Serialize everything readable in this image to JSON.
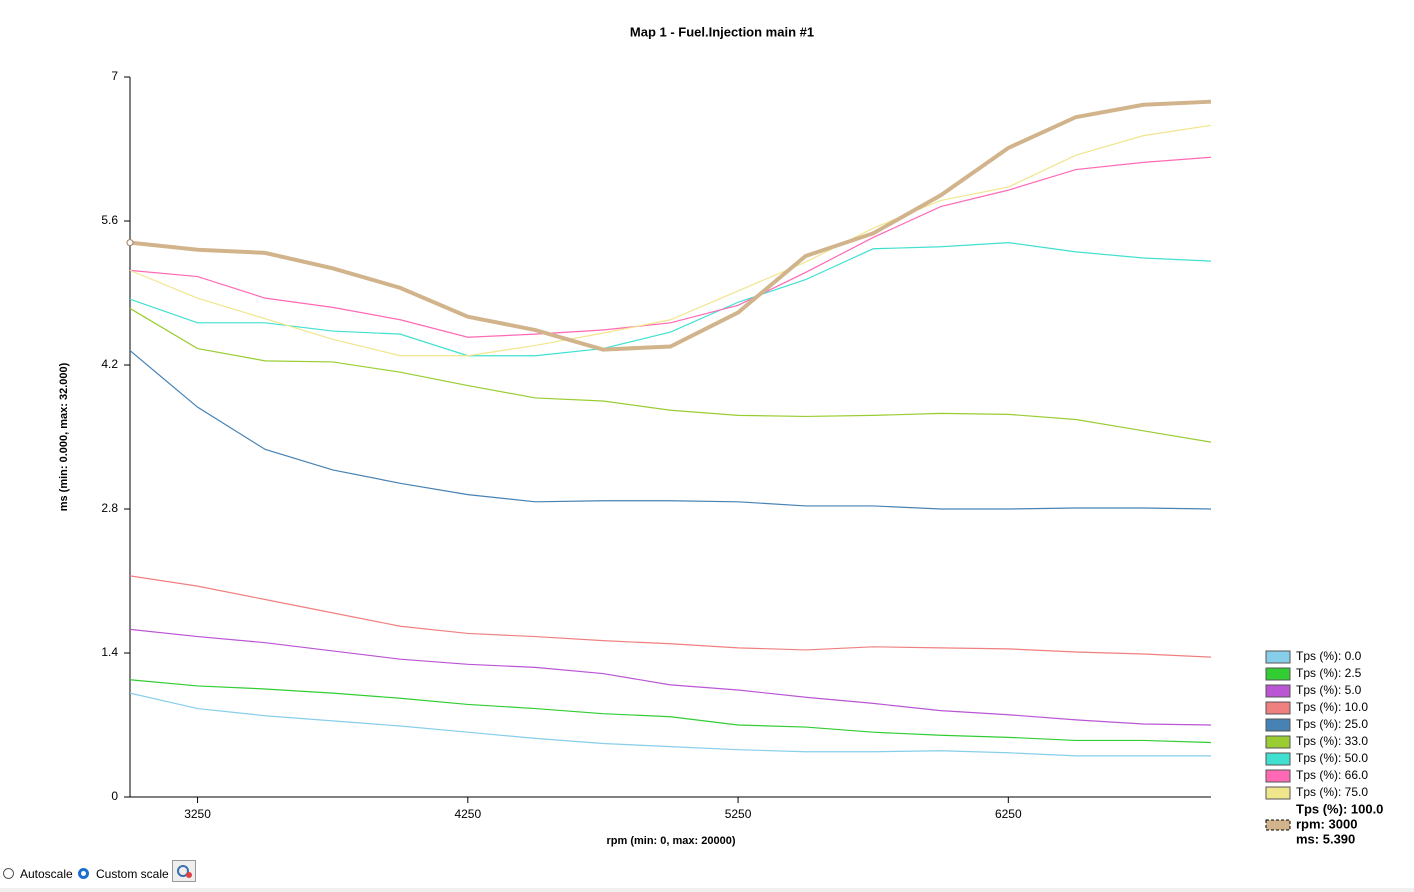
{
  "chart_data": {
    "type": "line",
    "title": "Map 1 - Fuel.Injection main #1",
    "x_label": "rpm (min: 0, max: 20000)",
    "y_label": "ms (min: 0.000, max: 32.000)",
    "x": [
      3000,
      3250,
      3500,
      3750,
      4000,
      4250,
      4500,
      4750,
      5000,
      5250,
      5500,
      5750,
      6000,
      6250,
      6500,
      6750,
      7000
    ],
    "xlim": [
      3000,
      7000
    ],
    "xticks": [
      3250,
      4250,
      5250,
      6250
    ],
    "ylim": [
      0,
      7
    ],
    "yticks": [
      0,
      1.4,
      2.8,
      4.2,
      5.6,
      7
    ],
    "legend": "right",
    "series": [
      {
        "name": "Tps (%): 0.0",
        "color": "#87ceeb",
        "values": [
          1.01,
          0.86,
          0.79,
          0.74,
          0.69,
          0.63,
          0.57,
          0.52,
          0.49,
          0.46,
          0.44,
          0.44,
          0.45,
          0.43,
          0.4,
          0.4,
          0.4
        ]
      },
      {
        "name": "Tps (%): 2.5",
        "color": "#32cd32",
        "values": [
          1.14,
          1.08,
          1.05,
          1.01,
          0.96,
          0.9,
          0.86,
          0.81,
          0.78,
          0.7,
          0.68,
          0.63,
          0.6,
          0.58,
          0.55,
          0.55,
          0.53
        ]
      },
      {
        "name": "Tps (%): 5.0",
        "color": "#ba55d3",
        "values": [
          1.63,
          1.56,
          1.5,
          1.42,
          1.34,
          1.29,
          1.26,
          1.2,
          1.09,
          1.04,
          0.97,
          0.91,
          0.84,
          0.8,
          0.75,
          0.71,
          0.7
        ]
      },
      {
        "name": "Tps (%): 10.0",
        "color": "#f08080",
        "values": [
          2.15,
          2.05,
          1.92,
          1.79,
          1.66,
          1.59,
          1.56,
          1.52,
          1.49,
          1.45,
          1.43,
          1.46,
          1.45,
          1.44,
          1.41,
          1.39,
          1.36
        ]
      },
      {
        "name": "Tps (%): 25.0",
        "color": "#4682b4",
        "values": [
          4.34,
          3.79,
          3.38,
          3.18,
          3.05,
          2.94,
          2.87,
          2.88,
          2.88,
          2.87,
          2.83,
          2.83,
          2.8,
          2.8,
          2.81,
          2.81,
          2.8
        ]
      },
      {
        "name": "Tps (%): 33.0",
        "color": "#9acd32",
        "values": [
          4.75,
          4.36,
          4.24,
          4.23,
          4.13,
          4.0,
          3.88,
          3.85,
          3.76,
          3.71,
          3.7,
          3.71,
          3.73,
          3.72,
          3.67,
          3.56,
          3.45
        ]
      },
      {
        "name": "Tps (%): 50.0",
        "color": "#40e0d0",
        "values": [
          4.84,
          4.61,
          4.61,
          4.53,
          4.5,
          4.29,
          4.29,
          4.36,
          4.52,
          4.81,
          5.03,
          5.33,
          5.35,
          5.39,
          5.3,
          5.24,
          5.21
        ]
      },
      {
        "name": "Tps (%): 66.0",
        "color": "#ff69b4",
        "values": [
          5.12,
          5.06,
          4.85,
          4.76,
          4.64,
          4.47,
          4.5,
          4.54,
          4.61,
          4.78,
          5.1,
          5.44,
          5.74,
          5.9,
          6.1,
          6.17,
          6.22
        ]
      },
      {
        "name": "Tps (%): 75.0",
        "color": "#f0e68c",
        "values": [
          5.12,
          4.85,
          4.65,
          4.45,
          4.29,
          4.29,
          4.39,
          4.51,
          4.64,
          4.92,
          5.2,
          5.53,
          5.8,
          5.93,
          6.24,
          6.43,
          6.53
        ]
      },
      {
        "name": "Tps (%): 100.0",
        "color": "#d2b48c",
        "bold": true,
        "values": [
          5.39,
          5.32,
          5.29,
          5.14,
          4.95,
          4.67,
          4.54,
          4.35,
          4.38,
          4.71,
          5.26,
          5.48,
          5.85,
          6.31,
          6.61,
          6.73,
          6.76
        ]
      }
    ],
    "cursor": {
      "series": 9,
      "index": 0,
      "labels": [
        "rpm: 3000",
        "ms: 5.390"
      ]
    }
  },
  "ui": {
    "autoscale": "Autoscale",
    "custom_scale": "Custom scale"
  }
}
